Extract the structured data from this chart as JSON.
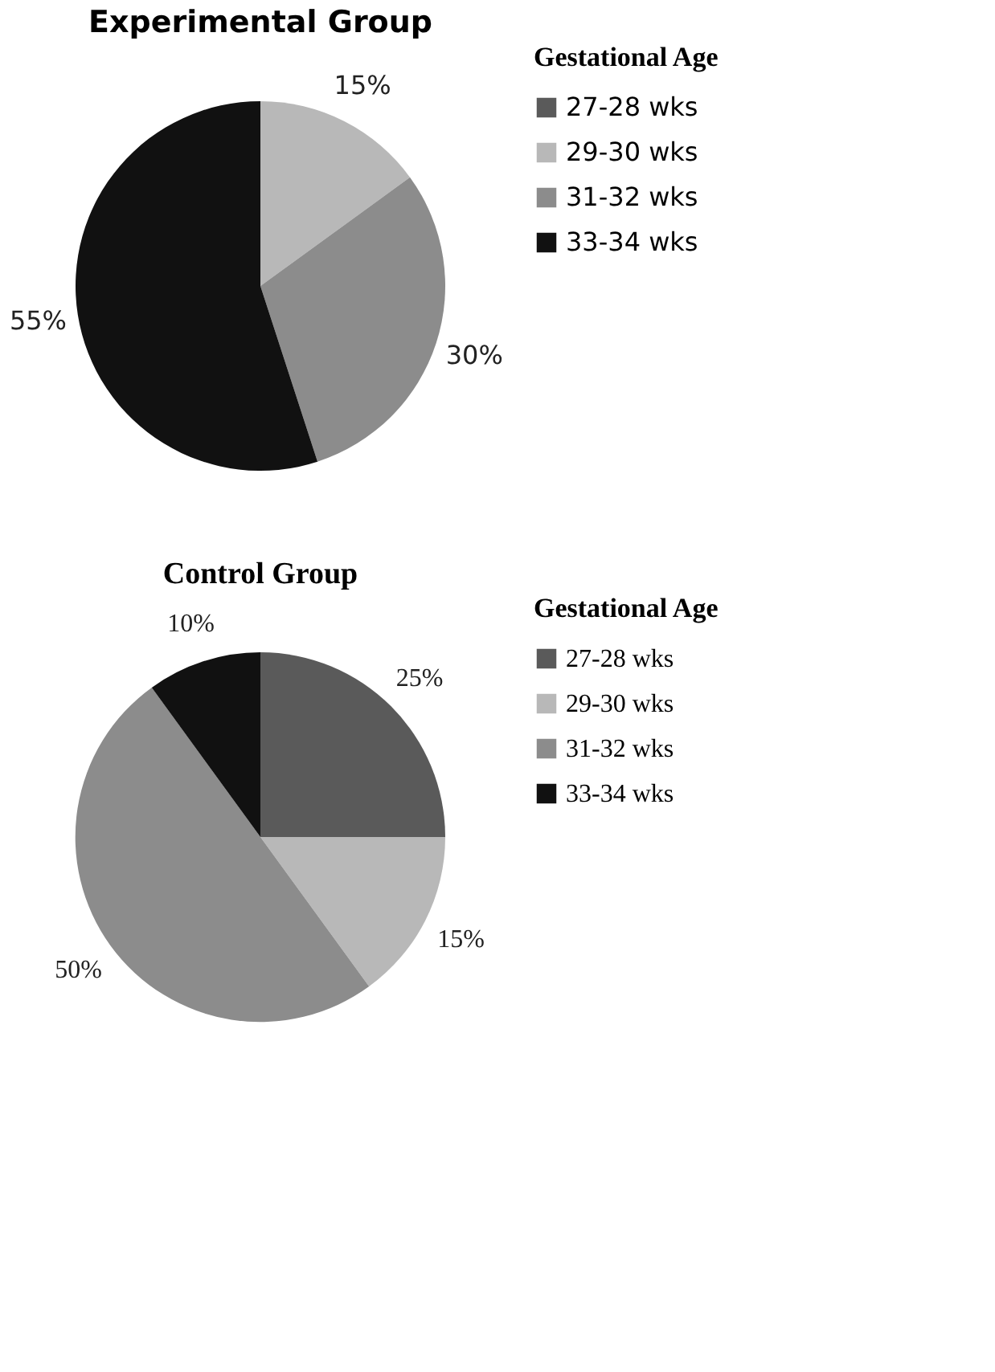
{
  "chart_data": [
    {
      "type": "pie",
      "title": "Experimental Group",
      "legend_title": "Gestational Age",
      "categories": [
        "27-28 wks",
        "29-30 wks",
        "31-32 wks",
        "33-34 wks"
      ],
      "values": [
        0,
        15,
        30,
        55
      ],
      "colors": [
        "#5a5a5a",
        "#b8b8b8",
        "#8c8c8c",
        "#111111"
      ],
      "value_labels": [
        null,
        "15%",
        "30%",
        "55%"
      ],
      "legend": "right"
    },
    {
      "type": "pie",
      "title": "Control Group",
      "legend_title": "Gestational Age",
      "categories": [
        "27-28 wks",
        "29-30 wks",
        "31-32 wks",
        "33-34 wks"
      ],
      "values": [
        25,
        15,
        50,
        10
      ],
      "colors": [
        "#5a5a5a",
        "#b8b8b8",
        "#8c8c8c",
        "#111111"
      ],
      "value_labels": [
        "25%",
        "15%",
        "50%",
        "10%"
      ],
      "legend": "right"
    }
  ]
}
